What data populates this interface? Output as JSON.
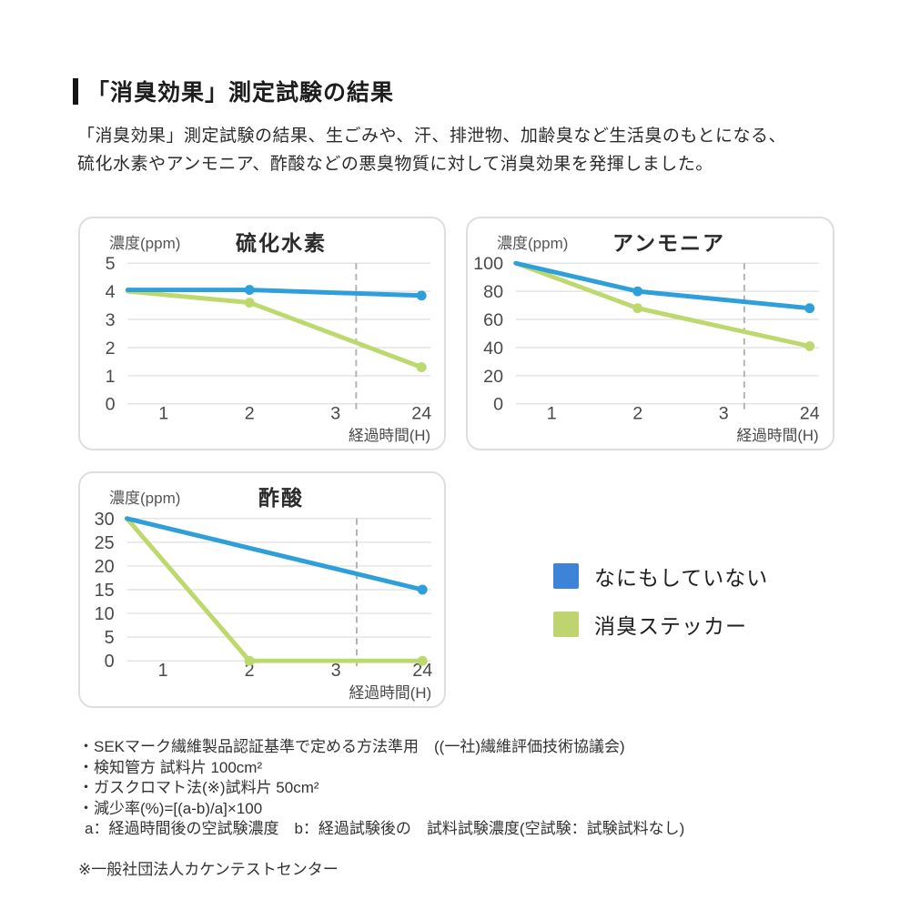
{
  "page": {
    "heading": "「消臭効果」測定試験の結果",
    "intro_line1": "「消臭効果」測定試験の結果、生ごみや、汗、排泄物、加齢臭など生活臭のもとになる、",
    "intro_line2": "硫化水素やアンモニア、酢酸などの悪臭物質に対して消臭効果を発揮しました。"
  },
  "legend": {
    "items": [
      {
        "label": "なにもしていない",
        "color": "#3d84d8"
      },
      {
        "label": "消臭ステッカー",
        "color": "#bfd36e"
      }
    ]
  },
  "footnotes": {
    "lines": [
      "・SEKマーク繊維製品認証基準で定める方法準用　((一社)繊維評価技術協議会)",
      "・検知管方 試料片 100cm²",
      "・ガスクロマト法(※)試料片 50cm²",
      "・減少率(%)=[(a-b)/a]×100",
      "a：経過時間後の空試験濃度　b：経過試験後の　試料試験濃度(空試験：試験試料なし)"
    ],
    "reference": "※一般社団法人カケンテストセンター"
  },
  "chart_data": [
    {
      "type": "line",
      "title": "硫化水素",
      "y_axis_label": "濃度(ppm)",
      "x_axis_label": "経過時間(H)",
      "x_tick_labels": [
        "1",
        "2",
        "3",
        "24"
      ],
      "x_tick_hours": [
        1,
        2,
        3,
        24
      ],
      "y_ticks": [
        0,
        1,
        2,
        3,
        4,
        5
      ],
      "ylim": [
        0,
        5
      ],
      "grid": true,
      "axis_break_between": "3 and 24",
      "series": [
        {
          "name": "なにもしていない",
          "color": "#2f9fda",
          "points": [
            {
              "t": 0,
              "v": 4.05
            },
            {
              "t": 2,
              "v": 4.05,
              "dot": true
            },
            {
              "t": 24,
              "v": 3.85,
              "dot": true
            }
          ]
        },
        {
          "name": "消臭ステッカー",
          "color": "#bdd96e",
          "points": [
            {
              "t": 0,
              "v": 4.0
            },
            {
              "t": 2,
              "v": 3.6,
              "dot": true
            },
            {
              "t": 24,
              "v": 1.3,
              "dot": true
            }
          ]
        }
      ]
    },
    {
      "type": "line",
      "title": "アンモニア",
      "y_axis_label": "濃度(ppm)",
      "x_axis_label": "経過時間(H)",
      "x_tick_labels": [
        "1",
        "2",
        "3",
        "24"
      ],
      "x_tick_hours": [
        1,
        2,
        3,
        24
      ],
      "y_ticks": [
        0,
        20,
        40,
        60,
        80,
        100
      ],
      "ylim": [
        0,
        100
      ],
      "grid": true,
      "axis_break_between": "3 and 24",
      "series": [
        {
          "name": "なにもしていない",
          "color": "#2f9fda",
          "points": [
            {
              "t": 0,
              "v": 100
            },
            {
              "t": 2,
              "v": 80,
              "dot": true
            },
            {
              "t": 24,
              "v": 68,
              "dot": true
            }
          ]
        },
        {
          "name": "消臭ステッカー",
          "color": "#bdd96e",
          "points": [
            {
              "t": 0,
              "v": 100
            },
            {
              "t": 2,
              "v": 68,
              "dot": true
            },
            {
              "t": 24,
              "v": 41,
              "dot": true
            }
          ]
        }
      ]
    },
    {
      "type": "line",
      "title": "酢酸",
      "y_axis_label": "濃度(ppm)",
      "x_axis_label": "経過時間(H)",
      "x_tick_labels": [
        "1",
        "2",
        "3",
        "24"
      ],
      "x_tick_hours": [
        1,
        2,
        3,
        24
      ],
      "y_ticks": [
        0,
        5,
        10,
        15,
        20,
        25,
        30
      ],
      "ylim": [
        0,
        30
      ],
      "grid": true,
      "axis_break_between": "3 and 24",
      "series": [
        {
          "name": "なにもしていない",
          "color": "#2f9fda",
          "points": [
            {
              "t": 0,
              "v": 30
            },
            {
              "t": 24,
              "v": 15,
              "dot": true
            }
          ]
        },
        {
          "name": "消臭ステッカー",
          "color": "#bdd96e",
          "points": [
            {
              "t": 0,
              "v": 30
            },
            {
              "t": 2,
              "v": 0,
              "dot": true
            },
            {
              "t": 24,
              "v": 0,
              "dot": true
            }
          ]
        }
      ]
    }
  ]
}
